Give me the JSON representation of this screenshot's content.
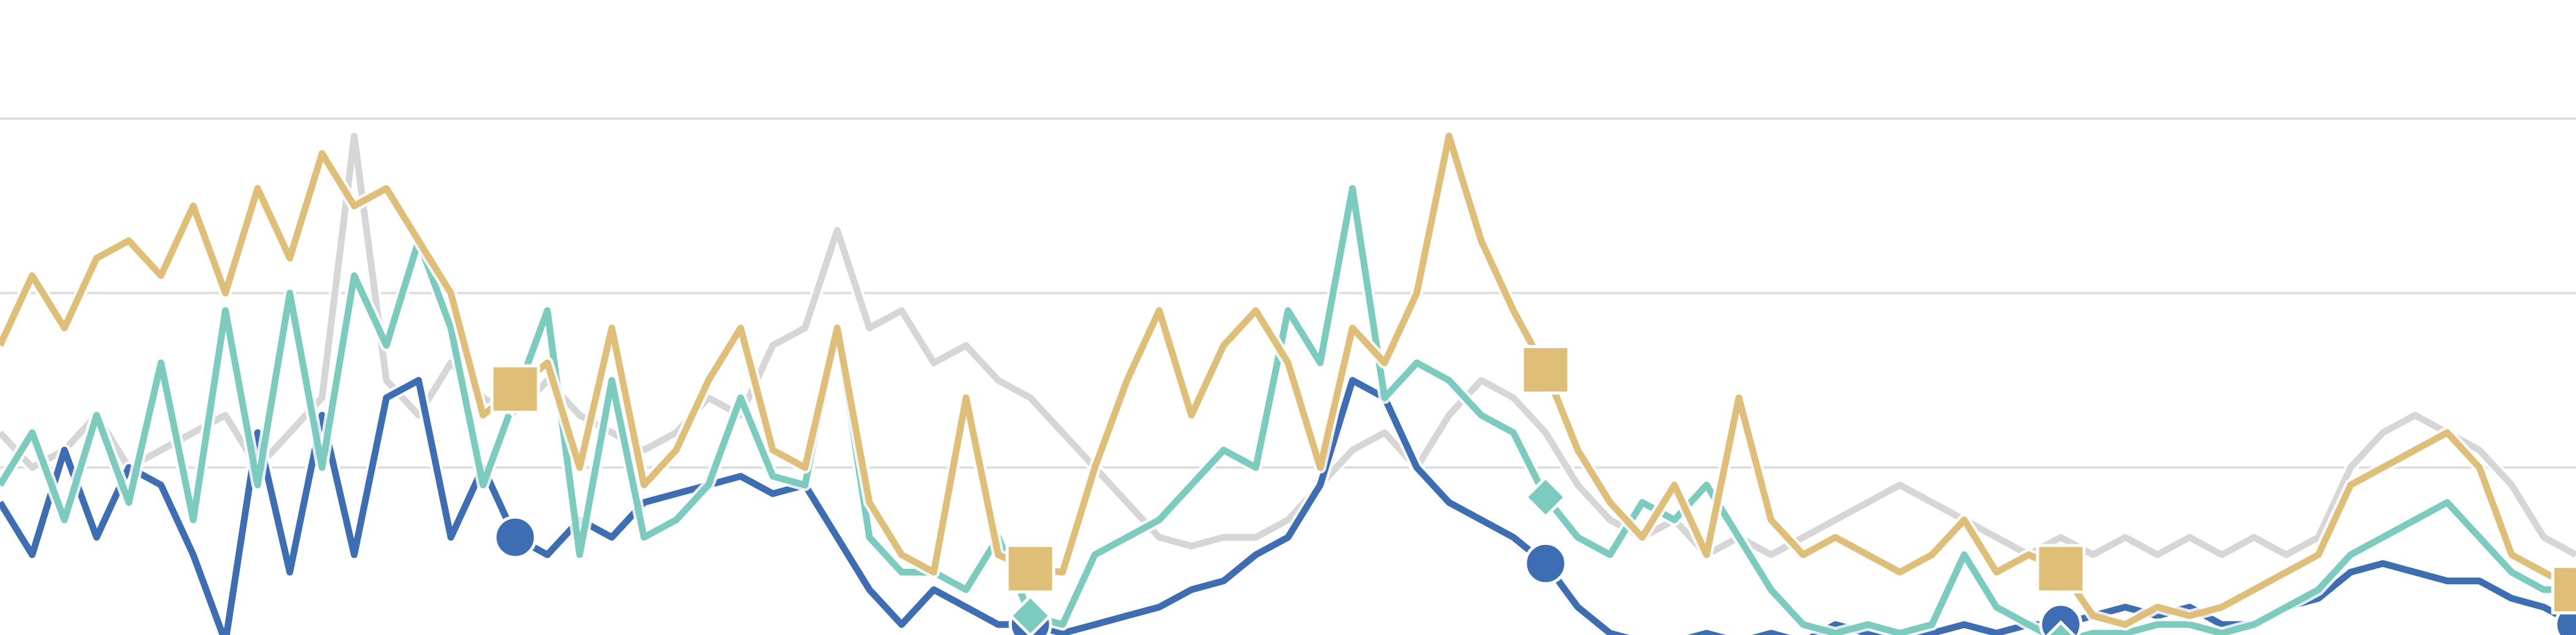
{
  "chart_data": {
    "type": "line",
    "x": [
      0,
      1,
      2,
      3,
      4,
      5,
      6,
      7,
      8,
      9,
      10,
      11,
      12,
      13,
      14,
      15,
      16,
      17,
      18,
      19,
      20,
      21,
      22,
      23,
      24,
      25,
      26,
      27,
      28,
      29,
      30,
      31,
      32,
      33,
      34,
      35,
      36,
      37,
      38,
      39,
      40,
      41,
      42,
      43,
      44,
      45,
      46,
      47,
      48,
      49,
      50,
      51,
      52,
      53,
      54,
      55,
      56,
      57,
      58,
      59,
      60,
      61,
      62,
      63,
      64,
      65,
      66,
      67,
      68,
      69,
      70,
      71,
      72,
      73,
      74,
      75,
      76,
      77,
      78,
      79,
      80
    ],
    "xlim": [
      0,
      80
    ],
    "ylim": [
      0.04,
      3.68
    ],
    "yticks": [
      1,
      2,
      3
    ],
    "grid": true,
    "markevery": 16,
    "series": [
      {
        "color": "#d6d6d6",
        "marker": "none",
        "values": [
          1.2,
          1.0,
          1.1,
          1.3,
          1.0,
          1.1,
          1.2,
          1.3,
          1.0,
          1.2,
          1.4,
          2.9,
          1.5,
          1.3,
          1.6,
          1.4,
          1.3,
          1.5,
          1.3,
          1.2,
          1.1,
          1.2,
          1.4,
          1.3,
          1.7,
          1.8,
          2.36,
          1.8,
          1.9,
          1.6,
          1.7,
          1.5,
          1.4,
          1.2,
          1.0,
          0.8,
          0.6,
          0.55,
          0.6,
          0.6,
          0.7,
          0.9,
          1.1,
          1.2,
          1.0,
          1.3,
          1.5,
          1.4,
          1.2,
          0.9,
          0.7,
          0.6,
          0.7,
          0.5,
          0.6,
          0.5,
          0.6,
          0.7,
          0.8,
          0.9,
          0.8,
          0.7,
          0.6,
          0.5,
          0.6,
          0.5,
          0.6,
          0.5,
          0.6,
          0.5,
          0.6,
          0.5,
          0.6,
          1.0,
          1.2,
          1.3,
          1.2,
          1.1,
          0.9,
          0.6,
          0.5
        ]
      },
      {
        "color": "#3d6eb4",
        "marker": "circle",
        "values": [
          0.8,
          0.5,
          1.1,
          0.6,
          1.0,
          0.9,
          0.5,
          0.0,
          1.2,
          0.4,
          1.3,
          0.5,
          1.4,
          1.5,
          0.6,
          1.0,
          0.6,
          0.5,
          0.7,
          0.6,
          0.8,
          0.85,
          0.9,
          0.95,
          0.85,
          0.9,
          0.6,
          0.3,
          0.1,
          0.3,
          0.2,
          0.1,
          0.1,
          0.05,
          0.1,
          0.15,
          0.2,
          0.3,
          0.35,
          0.5,
          0.6,
          0.9,
          1.5,
          1.4,
          1.0,
          0.8,
          0.7,
          0.6,
          0.45,
          0.2,
          0.05,
          0.0,
          0.0,
          0.05,
          0.0,
          0.05,
          0.0,
          0.1,
          0.05,
          0.0,
          0.05,
          0.1,
          0.05,
          0.1,
          0.1,
          0.15,
          0.2,
          0.15,
          0.2,
          0.1,
          0.1,
          0.2,
          0.25,
          0.4,
          0.45,
          0.4,
          0.35,
          0.35,
          0.25,
          0.2,
          0.1
        ]
      },
      {
        "color": "#7ccbbf",
        "marker": "diamond",
        "values": [
          0.9,
          1.2,
          0.7,
          1.3,
          0.8,
          1.6,
          0.7,
          1.9,
          0.9,
          2.0,
          1.0,
          2.1,
          1.7,
          2.3,
          1.8,
          0.9,
          1.4,
          1.9,
          0.5,
          1.5,
          0.6,
          0.7,
          0.9,
          1.4,
          0.95,
          0.9,
          1.8,
          0.6,
          0.4,
          0.4,
          0.3,
          0.6,
          0.15,
          0.1,
          0.5,
          0.6,
          0.7,
          0.9,
          1.1,
          1.0,
          1.9,
          1.6,
          2.6,
          1.4,
          1.6,
          1.5,
          1.3,
          1.2,
          0.83,
          0.6,
          0.5,
          0.8,
          0.7,
          0.9,
          0.6,
          0.3,
          0.1,
          0.05,
          0.1,
          0.05,
          0.1,
          0.5,
          0.2,
          0.1,
          0.0,
          0.05,
          0.05,
          0.1,
          0.1,
          0.05,
          0.1,
          0.2,
          0.3,
          0.5,
          0.6,
          0.7,
          0.8,
          0.6,
          0.4,
          0.3,
          0.3
        ]
      },
      {
        "color": "#dfbf78",
        "marker": "square",
        "values": [
          1.7,
          2.1,
          1.8,
          2.2,
          2.3,
          2.1,
          2.5,
          2.0,
          2.6,
          2.2,
          2.8,
          2.5,
          2.6,
          2.3,
          2.0,
          1.3,
          1.45,
          1.6,
          1.0,
          1.8,
          0.9,
          1.1,
          1.5,
          1.8,
          1.1,
          1.0,
          1.8,
          0.8,
          0.5,
          0.4,
          1.4,
          0.5,
          0.42,
          0.4,
          1.0,
          1.5,
          1.9,
          1.3,
          1.7,
          1.9,
          1.6,
          1.0,
          1.8,
          1.6,
          2.0,
          2.9,
          2.3,
          1.9,
          1.56,
          1.1,
          0.8,
          0.6,
          0.9,
          0.5,
          1.4,
          0.7,
          0.5,
          0.6,
          0.5,
          0.4,
          0.5,
          0.7,
          0.4,
          0.5,
          0.42,
          0.15,
          0.1,
          0.2,
          0.15,
          0.2,
          0.3,
          0.4,
          0.5,
          0.9,
          1.0,
          1.1,
          1.2,
          1.0,
          0.5,
          0.4,
          0.3
        ]
      }
    ]
  }
}
